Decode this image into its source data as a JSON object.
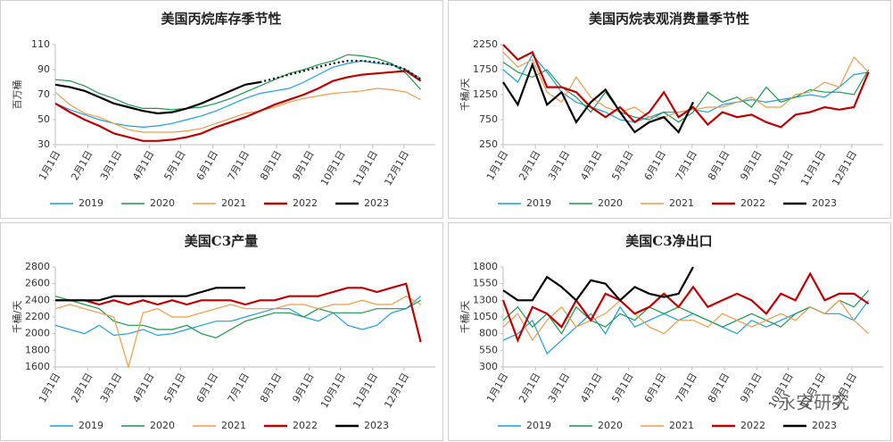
{
  "watermark": "永安研究",
  "chart_data": [
    {
      "type": "line",
      "title": "美国丙烷库存季节性",
      "y_label": "百万桶",
      "x": [
        1,
        15,
        29,
        43,
        57,
        71,
        85,
        99,
        113,
        127,
        141,
        155,
        169,
        183,
        197,
        211,
        225,
        239,
        253,
        267,
        281,
        295,
        309,
        323,
        337,
        351
      ],
      "xlim": [
        1,
        365
      ],
      "xticks": [
        {
          "value": 1,
          "label": "1月1日"
        },
        {
          "value": 32,
          "label": "2月1日"
        },
        {
          "value": 60,
          "label": "3月1日"
        },
        {
          "value": 91,
          "label": "4月1日"
        },
        {
          "value": 121,
          "label": "5月1日"
        },
        {
          "value": 152,
          "label": "6月1日"
        },
        {
          "value": 182,
          "label": "7月1日"
        },
        {
          "value": 213,
          "label": "8月1日"
        },
        {
          "value": 244,
          "label": "9月1日"
        },
        {
          "value": 274,
          "label": "10月1日"
        },
        {
          "value": 305,
          "label": "11月1日"
        },
        {
          "value": 335,
          "label": "12月1日"
        }
      ],
      "ylim": [
        30,
        110
      ],
      "yticks": [
        30,
        50,
        70,
        90,
        110
      ],
      "series": [
        {
          "name": "2019",
          "color": "#1aa1e0",
          "values": [
            63,
            58,
            54,
            50,
            47,
            45,
            44,
            45,
            47,
            50,
            53,
            57,
            62,
            67,
            71,
            73,
            75,
            80,
            86,
            92,
            95,
            97,
            95,
            94,
            90,
            83
          ]
        },
        {
          "name": "2020",
          "color": "#1a9a4a",
          "values": [
            82,
            81,
            77,
            71,
            67,
            62,
            59,
            59,
            58,
            59,
            60,
            63,
            67,
            72,
            77,
            82,
            87,
            90,
            94,
            97,
            102,
            101,
            99,
            95,
            87,
            74
          ]
        },
        {
          "name": "2021",
          "color": "#f19a45",
          "values": [
            72,
            62,
            55,
            52,
            47,
            42,
            40,
            40,
            40,
            41,
            43,
            47,
            51,
            55,
            57,
            60,
            64,
            67,
            69,
            71,
            72,
            73,
            75,
            74,
            72,
            66
          ]
        },
        {
          "name": "2022",
          "color": "#c00000",
          "values": [
            63,
            56,
            50,
            45,
            39,
            36,
            33,
            33,
            34,
            36,
            39,
            44,
            48,
            52,
            57,
            62,
            66,
            70,
            75,
            81,
            84,
            86,
            87,
            88,
            89,
            81
          ]
        },
        {
          "name": "2023",
          "color": "#000000",
          "values": [
            78,
            76,
            73,
            68,
            63,
            60,
            57,
            55,
            56,
            59,
            63,
            68,
            73,
            78,
            80,
            null,
            null,
            null,
            null,
            null,
            null,
            null,
            null,
            null,
            null,
            null
          ]
        },
        {
          "name": null,
          "color": "#000000",
          "dashed": true,
          "values": [
            null,
            null,
            null,
            null,
            null,
            null,
            null,
            null,
            null,
            null,
            null,
            null,
            null,
            null,
            80,
            83,
            86,
            89,
            92,
            95,
            97,
            97,
            96,
            94,
            90,
            82
          ]
        }
      ]
    },
    {
      "type": "line",
      "title": "美国丙烷表观消费量季节性",
      "y_label": "千桶/天",
      "x": [
        1,
        15,
        29,
        43,
        57,
        71,
        85,
        99,
        113,
        127,
        141,
        155,
        169,
        183,
        197,
        211,
        225,
        239,
        253,
        267,
        281,
        295,
        309,
        323,
        337,
        351
      ],
      "xlim": [
        1,
        365
      ],
      "xticks": [
        {
          "value": 1,
          "label": "1月1日"
        },
        {
          "value": 32,
          "label": "2月1日"
        },
        {
          "value": 60,
          "label": "3月1日"
        },
        {
          "value": 91,
          "label": "4月1日"
        },
        {
          "value": 121,
          "label": "5月1日"
        },
        {
          "value": 152,
          "label": "6月1日"
        },
        {
          "value": 182,
          "label": "7月1日"
        },
        {
          "value": 213,
          "label": "8月1日"
        },
        {
          "value": 244,
          "label": "9月1日"
        },
        {
          "value": 274,
          "label": "10月1日"
        },
        {
          "value": 305,
          "label": "11月1日"
        },
        {
          "value": 335,
          "label": "12月1日"
        }
      ],
      "ylim": [
        250,
        2250
      ],
      "yticks": [
        250,
        750,
        1250,
        1750,
        2250
      ],
      "series": [
        {
          "name": "2019",
          "color": "#1aa1e0",
          "values": [
            1750,
            1500,
            2050,
            1700,
            1300,
            1100,
            1000,
            900,
            750,
            700,
            800,
            900,
            900,
            950,
            900,
            1050,
            1100,
            1150,
            1100,
            1150,
            1200,
            1250,
            1200,
            1400,
            1650,
            1700
          ]
        },
        {
          "name": "2020",
          "color": "#1a9a4a",
          "values": [
            1900,
            1700,
            1600,
            1750,
            1400,
            1200,
            900,
            1300,
            900,
            800,
            750,
            900,
            700,
            900,
            1300,
            1100,
            1200,
            1000,
            1400,
            1100,
            1200,
            1350,
            1300,
            1300,
            1250,
            1750
          ]
        },
        {
          "name": "2021",
          "color": "#f19a45",
          "values": [
            2100,
            1800,
            1950,
            1300,
            1100,
            1600,
            1200,
            1000,
            900,
            1000,
            800,
            800,
            900,
            950,
            1000,
            1000,
            1100,
            1200,
            1000,
            1000,
            1250,
            1300,
            1500,
            1400,
            2000,
            1700
          ]
        },
        {
          "name": "2022",
          "color": "#c00000",
          "values": [
            2250,
            1950,
            2100,
            1400,
            1400,
            1300,
            1000,
            800,
            1000,
            700,
            900,
            1300,
            800,
            1000,
            650,
            900,
            800,
            850,
            700,
            600,
            850,
            900,
            1000,
            950,
            1000,
            1700
          ]
        },
        {
          "name": "2023",
          "color": "#000000",
          "values": [
            1500,
            1050,
            1850,
            1050,
            1300,
            700,
            1100,
            1350,
            900,
            500,
            700,
            800,
            500,
            1100,
            null,
            null,
            null,
            null,
            null,
            null,
            null,
            null,
            null,
            null,
            null,
            null
          ]
        }
      ]
    },
    {
      "type": "line",
      "title": "美国C3产量",
      "y_label": "千桶/天",
      "x": [
        1,
        15,
        29,
        43,
        57,
        71,
        85,
        99,
        113,
        127,
        141,
        155,
        169,
        183,
        197,
        211,
        225,
        239,
        253,
        267,
        281,
        295,
        309,
        323,
        337,
        351
      ],
      "xlim": [
        1,
        365
      ],
      "xticks": [
        {
          "value": 1,
          "label": "1月1日"
        },
        {
          "value": 32,
          "label": "2月1日"
        },
        {
          "value": 60,
          "label": "3月1日"
        },
        {
          "value": 91,
          "label": "4月1日"
        },
        {
          "value": 121,
          "label": "5月1日"
        },
        {
          "value": 152,
          "label": "6月1日"
        },
        {
          "value": 182,
          "label": "7月1日"
        },
        {
          "value": 213,
          "label": "8月1日"
        },
        {
          "value": 244,
          "label": "9月1日"
        },
        {
          "value": 274,
          "label": "10月1日"
        },
        {
          "value": 305,
          "label": "11月1日"
        },
        {
          "value": 335,
          "label": "12月1日"
        }
      ],
      "ylim": [
        1600,
        2800
      ],
      "yticks": [
        1600,
        1800,
        2000,
        2200,
        2400,
        2600,
        2800
      ],
      "series": [
        {
          "name": "2019",
          "color": "#1aa1e0",
          "values": [
            2100,
            2050,
            2000,
            2100,
            1980,
            2000,
            2050,
            1980,
            2000,
            2050,
            2100,
            2150,
            2150,
            2200,
            2250,
            2300,
            2300,
            2200,
            2150,
            2250,
            2100,
            2050,
            2100,
            2250,
            2300,
            2450
          ]
        },
        {
          "name": "2020",
          "color": "#1a9a4a",
          "values": [
            2450,
            2400,
            2350,
            2300,
            2150,
            2100,
            2100,
            2050,
            2050,
            2100,
            2000,
            1950,
            2050,
            2150,
            2200,
            2250,
            2250,
            2200,
            2300,
            2250,
            2250,
            2250,
            2300,
            2300,
            2300,
            2400
          ]
        },
        {
          "name": "2021",
          "color": "#f19a45",
          "values": [
            2300,
            2350,
            2300,
            2250,
            2200,
            1600,
            2250,
            2300,
            2200,
            2200,
            2250,
            2300,
            2350,
            2300,
            2300,
            2300,
            2350,
            2350,
            2300,
            2350,
            2350,
            2400,
            2350,
            2350,
            2450,
            2350
          ]
        },
        {
          "name": "2022",
          "color": "#c00000",
          "values": [
            2400,
            2400,
            2400,
            2350,
            2400,
            2350,
            2400,
            2350,
            2400,
            2350,
            2400,
            2400,
            2400,
            2350,
            2400,
            2400,
            2450,
            2450,
            2450,
            2500,
            2550,
            2550,
            2500,
            2550,
            2600,
            1900
          ]
        },
        {
          "name": "2023",
          "color": "#000000",
          "values": [
            2400,
            2400,
            2400,
            2400,
            2450,
            2450,
            2450,
            2450,
            2450,
            2450,
            2500,
            2550,
            2550,
            2550,
            null,
            null,
            null,
            null,
            null,
            null,
            null,
            null,
            null,
            null,
            null,
            null
          ]
        }
      ]
    },
    {
      "type": "line",
      "title": "美国C3净出口",
      "y_label": "千桶/天",
      "x": [
        1,
        15,
        29,
        43,
        57,
        71,
        85,
        99,
        113,
        127,
        141,
        155,
        169,
        183,
        197,
        211,
        225,
        239,
        253,
        267,
        281,
        295,
        309,
        323,
        337,
        351
      ],
      "xlim": [
        1,
        365
      ],
      "xticks": [
        {
          "value": 1,
          "label": "1月1日"
        },
        {
          "value": 32,
          "label": "2月1日"
        },
        {
          "value": 60,
          "label": "3月1日"
        },
        {
          "value": 91,
          "label": "4月1日"
        },
        {
          "value": 121,
          "label": "5月1日"
        },
        {
          "value": 152,
          "label": "6月1日"
        },
        {
          "value": 182,
          "label": "7月1日"
        },
        {
          "value": 213,
          "label": "8月1日"
        },
        {
          "value": 244,
          "label": "9月1日"
        },
        {
          "value": 274,
          "label": "10月1日"
        },
        {
          "value": 305,
          "label": "11月1日"
        },
        {
          "value": 335,
          "label": "12月1日"
        }
      ],
      "ylim": [
        300,
        1800
      ],
      "yticks": [
        300,
        550,
        800,
        1050,
        1300,
        1550,
        1800
      ],
      "series": [
        {
          "name": "2019",
          "color": "#1aa1e0",
          "values": [
            700,
            800,
            1000,
            500,
            700,
            900,
            1100,
            800,
            1200,
            900,
            1000,
            1100,
            1000,
            1100,
            1000,
            900,
            800,
            1000,
            900,
            1000,
            1100,
            1200,
            1100,
            1100,
            1000,
            1300
          ]
        },
        {
          "name": "2020",
          "color": "#1a9a4a",
          "values": [
            1000,
            1200,
            900,
            1100,
            800,
            1200,
            1000,
            900,
            1100,
            1000,
            1200,
            1100,
            1200,
            1100,
            1000,
            900,
            1000,
            1100,
            1000,
            900,
            1100,
            1200,
            1100,
            1300,
            1200,
            1450
          ]
        },
        {
          "name": "2021",
          "color": "#f19a45",
          "values": [
            900,
            1100,
            700,
            1000,
            1200,
            900,
            1000,
            1100,
            1300,
            1100,
            900,
            800,
            1000,
            1000,
            900,
            1100,
            1000,
            900,
            1000,
            1100,
            1000,
            1200,
            1100,
            1300,
            1000,
            800
          ]
        },
        {
          "name": "2022",
          "color": "#c00000",
          "values": [
            1300,
            700,
            1200,
            1100,
            900,
            1300,
            1000,
            1400,
            1300,
            1100,
            1200,
            1400,
            1200,
            1500,
            1200,
            1300,
            1400,
            1300,
            1100,
            1400,
            1300,
            1700,
            1300,
            1400,
            1400,
            1250
          ]
        },
        {
          "name": "2023",
          "color": "#000000",
          "values": [
            1450,
            1300,
            1300,
            1650,
            1500,
            1300,
            1600,
            1550,
            1300,
            1500,
            1400,
            1350,
            1400,
            1800,
            null,
            null,
            null,
            null,
            null,
            null,
            null,
            null,
            null,
            null,
            null,
            null
          ]
        }
      ]
    }
  ]
}
